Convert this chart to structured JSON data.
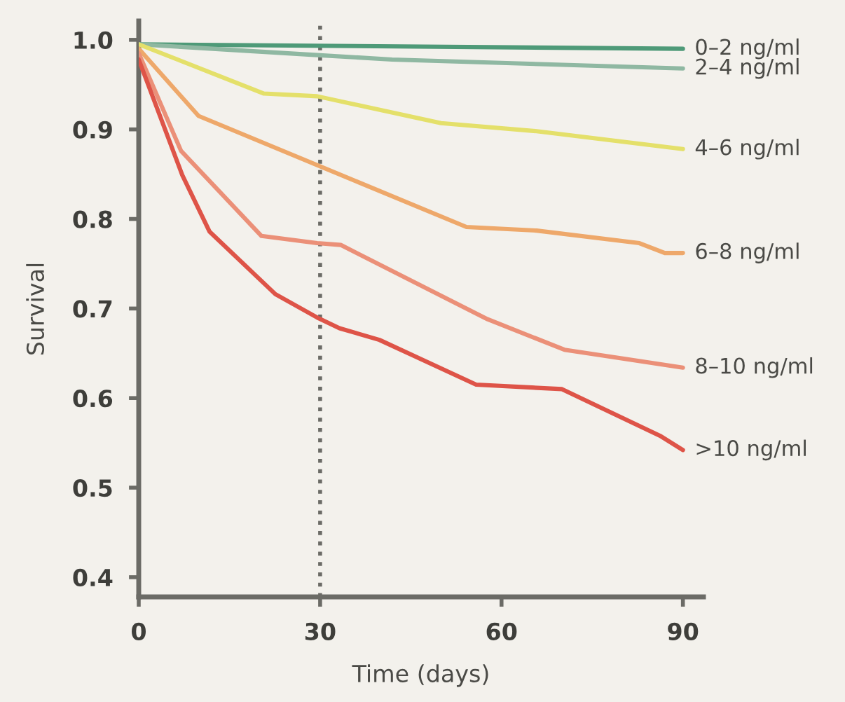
{
  "chart_data": {
    "type": "line",
    "xlabel": "Time (days)",
    "ylabel": "Survival",
    "xlim": [
      0,
      93.4
    ],
    "ylim": [
      0.378,
      1.021
    ],
    "xticks": [
      0,
      30,
      60,
      90
    ],
    "yticks": [
      0.4,
      0.5,
      0.6,
      0.7,
      0.8,
      0.9,
      {
        "value": 1,
        "label": "1.0"
      }
    ],
    "grid": false,
    "legend": false,
    "marker": "none",
    "line_style": "solid",
    "ref_lines": [
      {
        "axis": "x",
        "value": 30,
        "label": null,
        "color": "#6b6b66",
        "line_style": "dotted"
      }
    ],
    "series": [
      {
        "name": "0–2 ng/ml",
        "color": "#4e9a78",
        "x": [
          0,
          90
        ],
        "values": [
          0.995,
          0.99
        ]
      },
      {
        "name": "2–4 ng/ml",
        "color": "#8fb8a2",
        "x": [
          0,
          29.5,
          41.9,
          90
        ],
        "values": [
          0.995,
          0.983,
          0.978,
          0.968
        ]
      },
      {
        "name": "4–6 ng/ml",
        "color": "#e4e06a",
        "x": [
          0,
          20.7,
          29.5,
          50,
          65.8,
          90
        ],
        "values": [
          0.995,
          0.94,
          0.937,
          0.907,
          0.898,
          0.878
        ]
      },
      {
        "name": "6–8 ng/ml",
        "color": "#eea86a",
        "x": [
          0,
          9.9,
          54.2,
          65.8,
          82.8,
          87,
          90
        ],
        "values": [
          0.99,
          0.915,
          0.791,
          0.787,
          0.773,
          0.762,
          0.762
        ]
      },
      {
        "name": "8–10 ng/ml",
        "color": "#eb9078",
        "x": [
          0,
          7,
          20.3,
          29.5,
          33.4,
          57.7,
          70.4,
          90
        ],
        "values": [
          0.985,
          0.876,
          0.781,
          0.773,
          0.771,
          0.688,
          0.654,
          0.634
        ]
      },
      {
        "name": ">10 ng/ml",
        "color": "#de5448",
        "x": [
          0,
          7.2,
          11.7,
          22.6,
          29.5,
          33.2,
          39.8,
          55.8,
          70,
          86.2,
          90
        ],
        "values": [
          0.978,
          0.849,
          0.786,
          0.716,
          0.69,
          0.678,
          0.665,
          0.615,
          0.61,
          0.558,
          0.542
        ]
      }
    ]
  }
}
